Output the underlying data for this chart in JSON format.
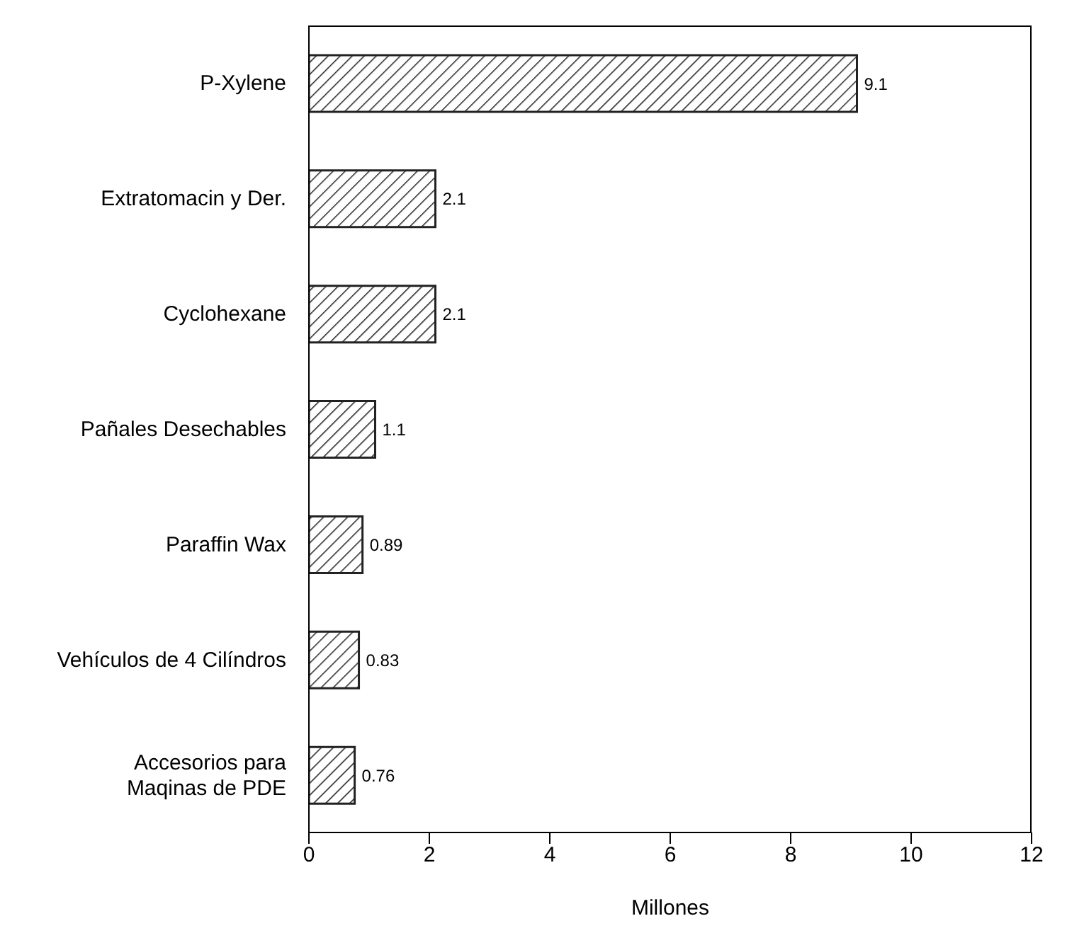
{
  "chart_data": {
    "type": "bar",
    "orientation": "horizontal",
    "xlabel": "Millones",
    "categories": [
      "P-Xylene",
      "Extratomacin y Der.",
      "Cyclohexane",
      "Pañales Desechables",
      "Paraffin Wax",
      "Vehículos de 4 Cilíndros",
      "Accesorios para Maqinas de PDE"
    ],
    "values": [
      9.1,
      2.1,
      2.1,
      1.1,
      0.89,
      0.83,
      0.76
    ],
    "color": "#222222",
    "xlim": [
      0,
      12
    ],
    "xticks": [
      0,
      2,
      4,
      6,
      8,
      10,
      12
    ],
    "data_labels": true
  }
}
